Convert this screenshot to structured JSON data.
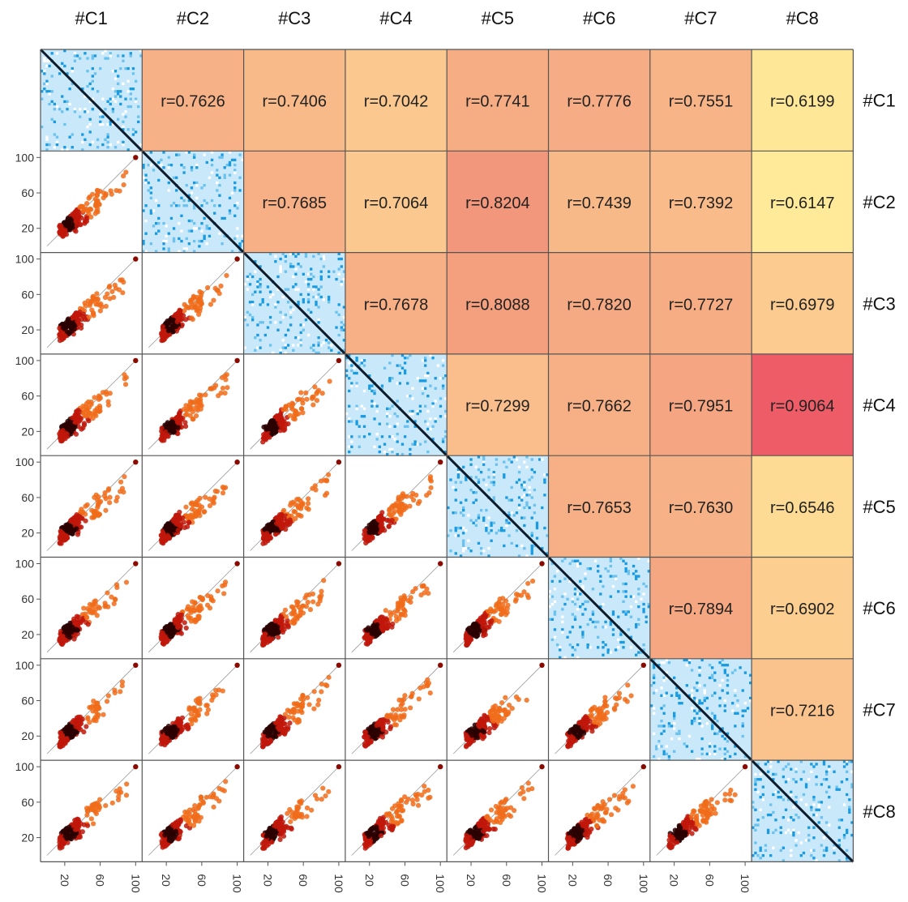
{
  "chart_data": {
    "type": "scatter-matrix",
    "title": "",
    "variables": [
      "#C1",
      "#C2",
      "#C3",
      "#C4",
      "#C5",
      "#C6",
      "#C7",
      "#C8"
    ],
    "upper_triangle": "correlation",
    "diagonal": "heatmap",
    "lower_triangle": "scatter",
    "correlation_matrix": [
      [
        null,
        0.7626,
        0.7406,
        0.7042,
        0.7741,
        0.7776,
        0.7551,
        0.6199
      ],
      [
        null,
        null,
        0.7685,
        0.7064,
        0.8204,
        0.7439,
        0.7392,
        0.6147
      ],
      [
        null,
        null,
        null,
        0.7678,
        0.8088,
        0.782,
        0.7727,
        0.6979
      ],
      [
        null,
        null,
        null,
        null,
        0.7299,
        0.7662,
        0.7951,
        0.9064
      ],
      [
        null,
        null,
        null,
        null,
        null,
        0.7653,
        0.763,
        0.6546
      ],
      [
        null,
        null,
        null,
        null,
        null,
        null,
        0.7894,
        0.6902
      ],
      [
        null,
        null,
        null,
        null,
        null,
        null,
        null,
        0.7216
      ],
      [
        null,
        null,
        null,
        null,
        null,
        null,
        null,
        null
      ]
    ],
    "correlation_labels": [
      [
        null,
        "r=0.7626",
        "r=0.7406",
        "r=0.7042",
        "r=0.7741",
        "r=0.7776",
        "r=0.7551",
        "r=0.6199"
      ],
      [
        null,
        null,
        "r=0.7685",
        "r=0.7064",
        "r=0.8204",
        "r=0.7439",
        "r=0.7392",
        "r=0.6147"
      ],
      [
        null,
        null,
        null,
        "r=0.7678",
        "r=0.8088",
        "r=0.7820",
        "r=0.7727",
        "r=0.6979"
      ],
      [
        null,
        null,
        null,
        null,
        "r=0.7299",
        "r=0.7662",
        "r=0.7951",
        "r=0.9064"
      ],
      [
        null,
        null,
        null,
        null,
        null,
        "r=0.7653",
        "r=0.7630",
        "r=0.6546"
      ],
      [
        null,
        null,
        null,
        null,
        null,
        null,
        "r=0.7894",
        "r=0.6902"
      ],
      [
        null,
        null,
        null,
        null,
        null,
        null,
        null,
        "r=0.7216"
      ],
      [
        null,
        null,
        null,
        null,
        null,
        null,
        null,
        null
      ]
    ],
    "axis_range": [
      0,
      100
    ],
    "ticks": [
      20,
      60,
      100
    ],
    "tick_labels": [
      "20",
      "60",
      "100"
    ],
    "color_scale": {
      "low": 0.6,
      "high": 0.91,
      "stops": [
        "#fff09a",
        "#fbc98f",
        "#f4a07f",
        "#ee5b66"
      ]
    },
    "scatter_colors": {
      "dark": "#2a0000",
      "mid": "#c0180a",
      "light": "#f06c1a",
      "outlier": "#8a0a00"
    },
    "heatmap_colors": {
      "background": "#c9e9fb",
      "dark_cell": "#1a9be0",
      "diagonal": "#0d1a2a"
    }
  }
}
